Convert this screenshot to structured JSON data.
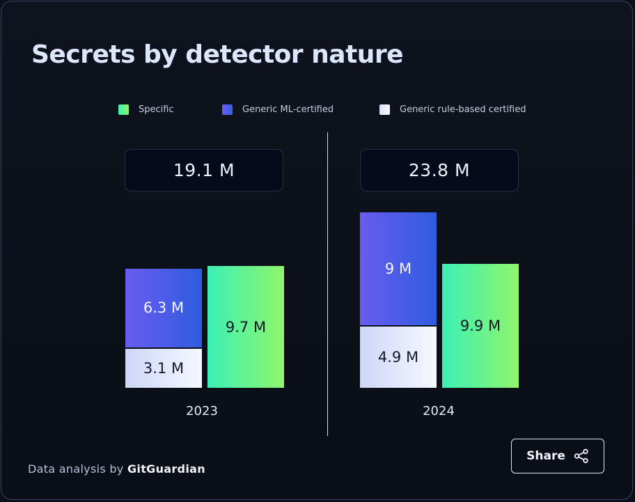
{
  "chart_data": {
    "type": "bar",
    "title": "Secrets by detector nature",
    "categories": [
      "2023",
      "2024"
    ],
    "series": [
      {
        "name": "Specific",
        "values": [
          9.7,
          9.9
        ],
        "labels": [
          "9.7 M",
          "9.9 M"
        ],
        "color": "#3df0b2"
      },
      {
        "name": "Generic ML-certified",
        "values": [
          6.3,
          9
        ],
        "labels": [
          "6.3 M",
          "9 M"
        ],
        "color": "#5b5ef0"
      },
      {
        "name": "Generic rule-based certified",
        "values": [
          3.1,
          4.9
        ],
        "labels": [
          "3.1 M",
          "4.9 M"
        ],
        "color": "#eef1fd"
      }
    ],
    "totals": [
      "19.1 M",
      "23.8 M"
    ],
    "unit": "M",
    "legend_position": "top-center",
    "grid": false
  },
  "footer": {
    "prefix": "Data analysis by",
    "brand": "GitGuardian"
  },
  "share": {
    "label": "Share",
    "icon": "share-icon"
  }
}
